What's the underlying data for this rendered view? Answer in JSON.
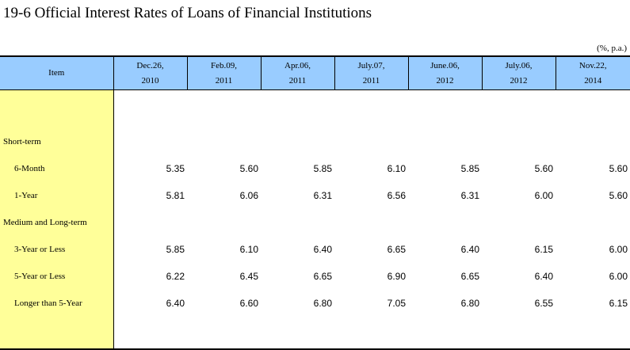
{
  "title": "19-6  Official Interest Rates of Loans of Financial Institutions",
  "unit": "(%, p.a.)",
  "columns": {
    "item": "Item",
    "dates": [
      [
        "Dec.26,",
        "2010"
      ],
      [
        "Feb.09,",
        "2011"
      ],
      [
        "Apr.06,",
        "2011"
      ],
      [
        "July.07,",
        "2011"
      ],
      [
        "June.06,",
        "2012"
      ],
      [
        "July.06,",
        "2012"
      ],
      [
        "Nov.22,",
        "2014"
      ]
    ]
  },
  "sections": {
    "short_term": "Short-term",
    "medium_long_term": "Medium and Long-term"
  },
  "rows": [
    {
      "label": "6-Month",
      "values": [
        "5.35",
        "5.60",
        "5.85",
        "6.10",
        "5.85",
        "5.60",
        "5.60"
      ]
    },
    {
      "label": "1-Year",
      "values": [
        "5.81",
        "6.06",
        "6.31",
        "6.56",
        "6.31",
        "6.00",
        "5.60"
      ]
    },
    {
      "label": "3-Year or Less",
      "values": [
        "5.85",
        "6.10",
        "6.40",
        "6.65",
        "6.40",
        "6.15",
        "6.00"
      ]
    },
    {
      "label": "5-Year or Less",
      "values": [
        "6.22",
        "6.45",
        "6.65",
        "6.90",
        "6.65",
        "6.40",
        "6.00"
      ]
    },
    {
      "label": "Longer than 5-Year",
      "values": [
        "6.40",
        "6.60",
        "6.80",
        "7.05",
        "6.80",
        "6.55",
        "6.15"
      ]
    }
  ]
}
